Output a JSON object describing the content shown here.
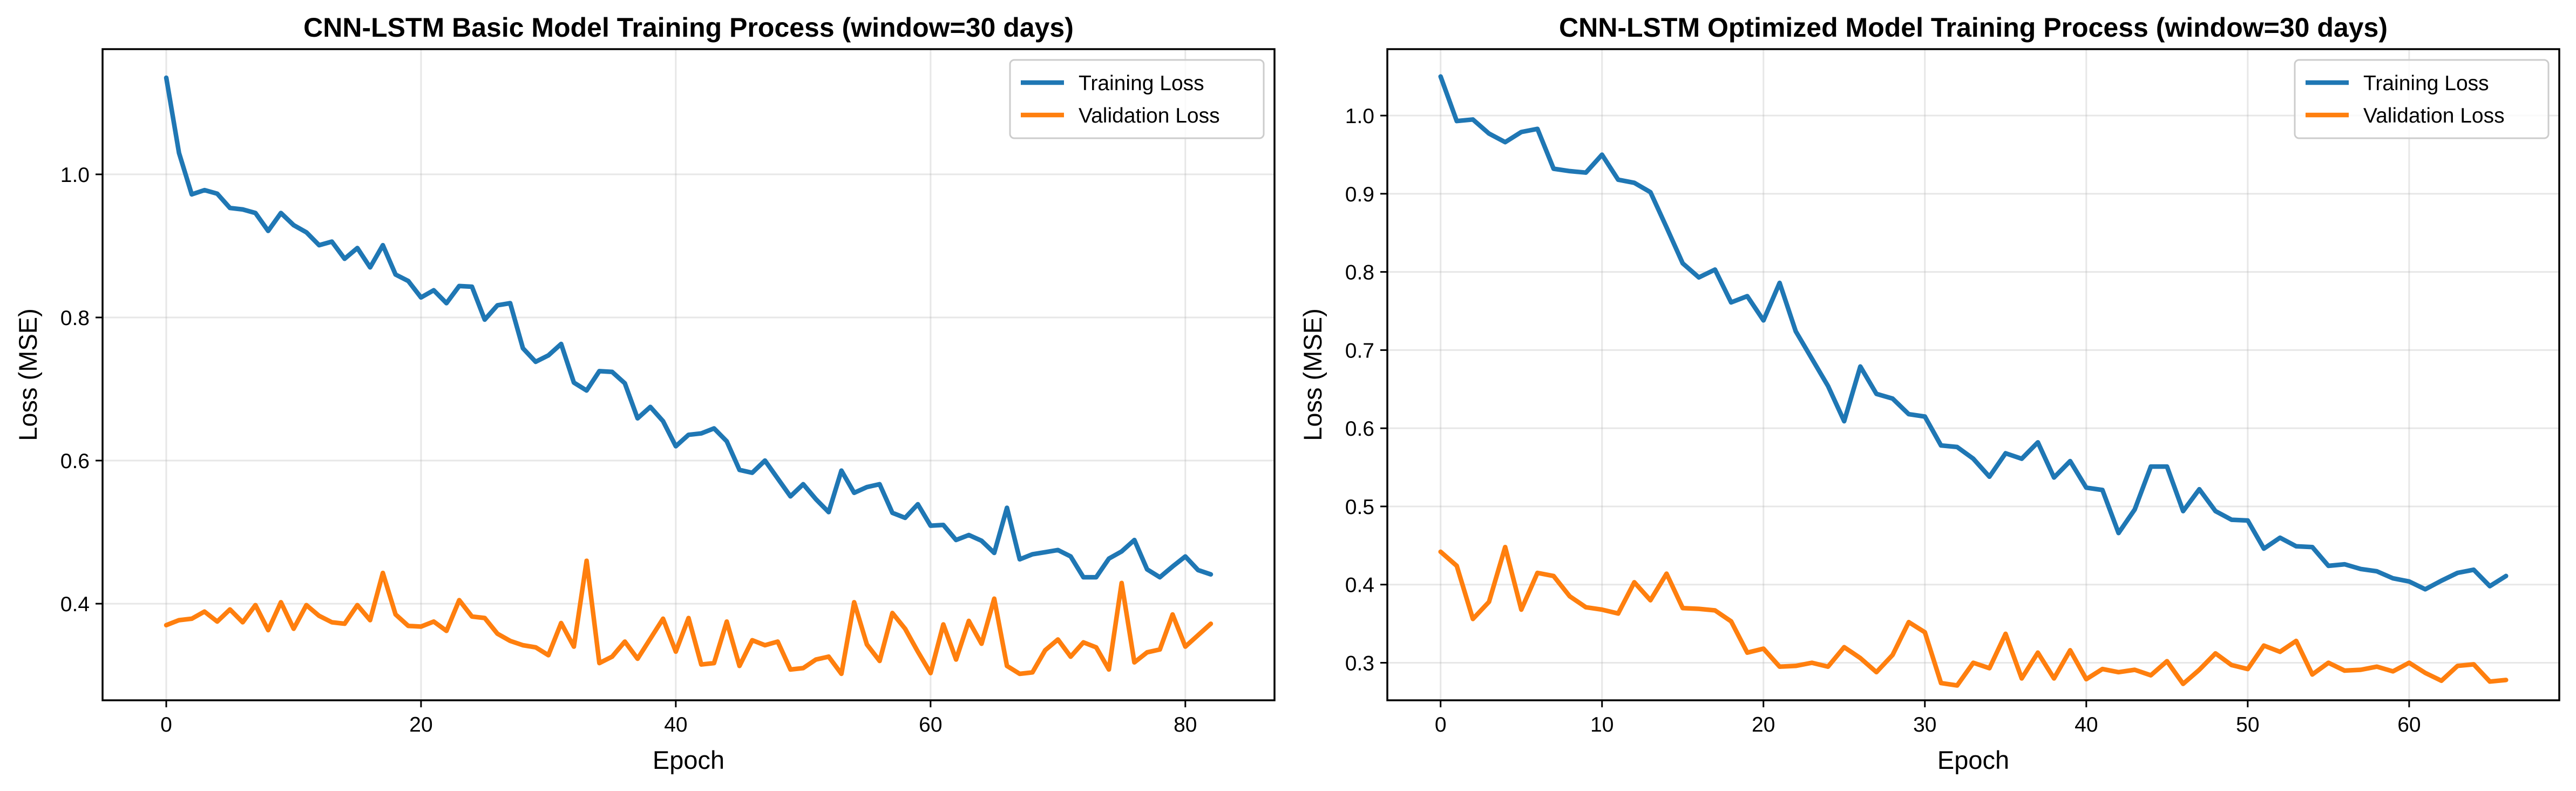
{
  "chart_data": [
    {
      "type": "line",
      "title": "CNN-LSTM Basic Model Training Process (window=30 days)",
      "xlabel": "Epoch",
      "ylabel": "Loss (MSE)",
      "xlim": [
        -5,
        87
      ],
      "ylim": [
        0.265,
        1.175
      ],
      "xticks": [
        0,
        20,
        40,
        60,
        80
      ],
      "yticks": [
        0.4,
        0.6,
        0.8,
        1.0
      ],
      "xtick_labels": [
        "0",
        "20",
        "40",
        "60",
        "80"
      ],
      "ytick_labels": [
        "0.4",
        "0.6",
        "0.8",
        "1.0"
      ],
      "grid": true,
      "legend_position": "top-right",
      "series": [
        {
          "name": "Training Loss",
          "color": "#1f77b4",
          "values": [
            1.135,
            1.03,
            0.972,
            0.978,
            0.973,
            0.953,
            0.951,
            0.946,
            0.921,
            0.946,
            0.929,
            0.919,
            0.901,
            0.906,
            0.882,
            0.897,
            0.87,
            0.901,
            0.86,
            0.851,
            0.828,
            0.838,
            0.82,
            0.844,
            0.843,
            0.797,
            0.817,
            0.82,
            0.757,
            0.738,
            0.747,
            0.763,
            0.709,
            0.698,
            0.725,
            0.724,
            0.708,
            0.659,
            0.675,
            0.655,
            0.62,
            0.636,
            0.638,
            0.645,
            0.627,
            0.587,
            0.583,
            0.6,
            0.575,
            0.55,
            0.567,
            0.546,
            0.528,
            0.586,
            0.555,
            0.563,
            0.567,
            0.527,
            0.52,
            0.539,
            0.509,
            0.51,
            0.489,
            0.496,
            0.488,
            0.471,
            0.534,
            0.462,
            0.469,
            0.472,
            0.475,
            0.466,
            0.437,
            0.437,
            0.463,
            0.473,
            0.489,
            0.448,
            0.437,
            0.452,
            0.466,
            0.447,
            0.441
          ]
        },
        {
          "name": "Validation Loss",
          "color": "#ff7f0e",
          "values": [
            0.37,
            0.377,
            0.379,
            0.389,
            0.375,
            0.392,
            0.374,
            0.398,
            0.363,
            0.402,
            0.365,
            0.398,
            0.383,
            0.374,
            0.372,
            0.398,
            0.377,
            0.443,
            0.385,
            0.369,
            0.368,
            0.375,
            0.362,
            0.405,
            0.382,
            0.38,
            0.358,
            0.348,
            0.342,
            0.339,
            0.328,
            0.373,
            0.34,
            0.46,
            0.317,
            0.326,
            0.347,
            0.323,
            0.351,
            0.379,
            0.333,
            0.38,
            0.315,
            0.317,
            0.375,
            0.313,
            0.349,
            0.342,
            0.347,
            0.308,
            0.31,
            0.322,
            0.326,
            0.302,
            0.402,
            0.343,
            0.32,
            0.387,
            0.365,
            0.333,
            0.303,
            0.371,
            0.322,
            0.376,
            0.344,
            0.407,
            0.313,
            0.302,
            0.304,
            0.335,
            0.35,
            0.326,
            0.346,
            0.339,
            0.308,
            0.429,
            0.318,
            0.332,
            0.336,
            0.385,
            0.34,
            0.356,
            0.372
          ]
        }
      ]
    },
    {
      "type": "line",
      "title": "CNN-LSTM Optimized Model Training Process (window=30 days)",
      "xlabel": "Epoch",
      "ylabel": "Loss (MSE)",
      "xlim": [
        -3.3,
        69.3
      ],
      "ylim": [
        0.252,
        1.085
      ],
      "xticks": [
        0,
        10,
        20,
        30,
        40,
        50,
        60
      ],
      "yticks": [
        0.3,
        0.4,
        0.5,
        0.6,
        0.7,
        0.8,
        0.9,
        1.0
      ],
      "xtick_labels": [
        "0",
        "10",
        "20",
        "30",
        "40",
        "50",
        "60"
      ],
      "ytick_labels": [
        "0.3",
        "0.4",
        "0.5",
        "0.6",
        "0.7",
        "0.8",
        "0.9",
        "1.0"
      ],
      "grid": true,
      "legend_position": "top-right",
      "series": [
        {
          "name": "Training Loss",
          "color": "#1f77b4",
          "values": [
            1.05,
            0.993,
            0.995,
            0.977,
            0.966,
            0.979,
            0.983,
            0.932,
            0.929,
            0.927,
            0.95,
            0.918,
            0.914,
            0.902,
            0.857,
            0.811,
            0.793,
            0.803,
            0.761,
            0.769,
            0.738,
            0.786,
            0.724,
            0.689,
            0.654,
            0.609,
            0.679,
            0.644,
            0.638,
            0.618,
            0.615,
            0.578,
            0.576,
            0.561,
            0.538,
            0.568,
            0.561,
            0.582,
            0.537,
            0.558,
            0.524,
            0.521,
            0.466,
            0.496,
            0.551,
            0.551,
            0.494,
            0.522,
            0.494,
            0.483,
            0.482,
            0.446,
            0.46,
            0.449,
            0.448,
            0.424,
            0.426,
            0.42,
            0.417,
            0.408,
            0.404,
            0.394,
            0.405,
            0.415,
            0.419,
            0.398,
            0.411
          ]
        },
        {
          "name": "Validation Loss",
          "color": "#ff7f0e",
          "values": [
            0.442,
            0.424,
            0.356,
            0.378,
            0.448,
            0.368,
            0.415,
            0.411,
            0.385,
            0.371,
            0.368,
            0.363,
            0.403,
            0.38,
            0.414,
            0.37,
            0.369,
            0.367,
            0.353,
            0.313,
            0.318,
            0.295,
            0.296,
            0.3,
            0.295,
            0.32,
            0.306,
            0.288,
            0.31,
            0.352,
            0.339,
            0.274,
            0.271,
            0.3,
            0.293,
            0.337,
            0.28,
            0.313,
            0.28,
            0.316,
            0.279,
            0.292,
            0.288,
            0.291,
            0.284,
            0.302,
            0.273,
            0.291,
            0.312,
            0.297,
            0.292,
            0.322,
            0.314,
            0.328,
            0.285,
            0.3,
            0.29,
            0.291,
            0.295,
            0.289,
            0.3,
            0.287,
            0.277,
            0.296,
            0.298,
            0.276,
            0.278
          ]
        }
      ]
    }
  ]
}
